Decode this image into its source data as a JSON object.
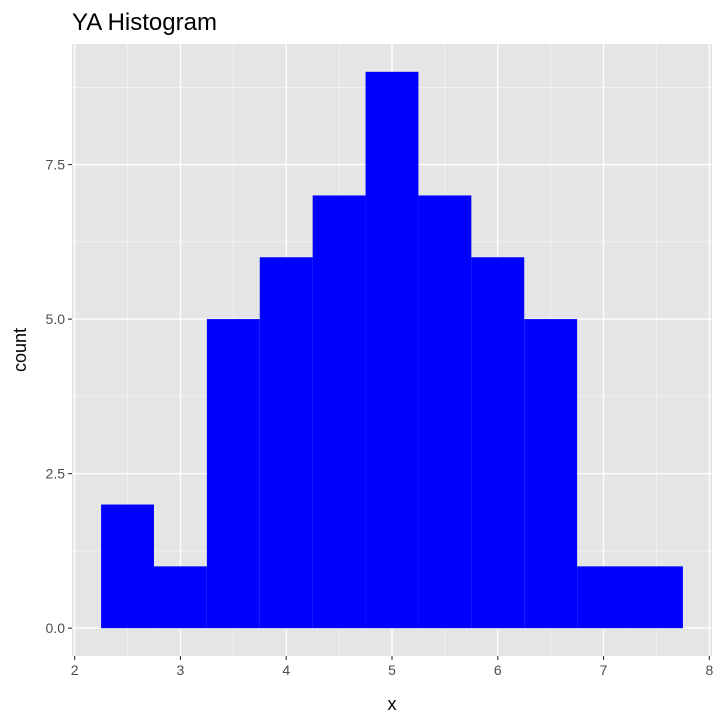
{
  "chart_data": {
    "type": "bar",
    "title": "YA Histogram",
    "xlabel": "x",
    "ylabel": "count",
    "bin_width": 0.5,
    "bins": [
      {
        "x_start": 2.25,
        "x_end": 2.75,
        "count": 2
      },
      {
        "x_start": 2.75,
        "x_end": 3.25,
        "count": 1
      },
      {
        "x_start": 3.25,
        "x_end": 3.75,
        "count": 5
      },
      {
        "x_start": 3.75,
        "x_end": 4.25,
        "count": 6
      },
      {
        "x_start": 4.25,
        "x_end": 4.75,
        "count": 7
      },
      {
        "x_start": 4.75,
        "x_end": 5.25,
        "count": 9
      },
      {
        "x_start": 5.25,
        "x_end": 5.75,
        "count": 7
      },
      {
        "x_start": 5.75,
        "x_end": 6.25,
        "count": 6
      },
      {
        "x_start": 6.25,
        "x_end": 6.75,
        "count": 5
      },
      {
        "x_start": 6.75,
        "x_end": 7.25,
        "count": 1
      },
      {
        "x_start": 7.25,
        "x_end": 7.75,
        "count": 1
      }
    ],
    "xlim": [
      1.975,
      8.025
    ],
    "ylim": [
      -0.45,
      9.45
    ],
    "x_ticks": [
      2,
      3,
      4,
      5,
      6,
      7,
      8
    ],
    "x_tick_labels": [
      "2",
      "3",
      "4",
      "5",
      "6",
      "7",
      "8"
    ],
    "y_ticks": [
      0,
      2.5,
      5,
      7.5
    ],
    "y_tick_labels": [
      "0.0",
      "2.5",
      "5.0",
      "7.5"
    ],
    "grid": true,
    "legend": "none",
    "colors": {
      "bar": "#0000ff",
      "panel_background": "#e5e5e5",
      "gridline": "#ffffff"
    }
  }
}
